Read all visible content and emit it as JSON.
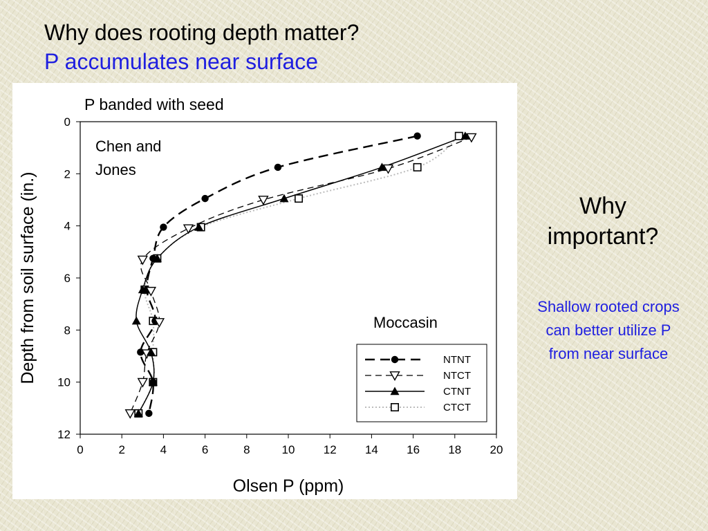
{
  "slide": {
    "title_line1": "Why does rooting depth matter?",
    "title_line2": "P accumulates near surface",
    "side_question": "Why important?",
    "side_answer": "Shallow rooted crops can better utilize P from near surface",
    "colors": {
      "title_accent": "#1f1fe0",
      "panel": "#ffffff"
    }
  },
  "chart_data": {
    "type": "line",
    "title": "P banded with seed",
    "xlabel": "Olsen P (ppm)",
    "ylabel": "Depth from soil surface (in.)",
    "xlim": [
      0,
      20
    ],
    "ylim": [
      0,
      12
    ],
    "y_inverted": true,
    "xticks": [
      0,
      2,
      4,
      6,
      8,
      10,
      12,
      14,
      16,
      18,
      20
    ],
    "yticks": [
      0,
      2,
      4,
      6,
      8,
      10,
      12
    ],
    "grid": false,
    "legend_position": "bottom-right",
    "annotations": [
      "Chen and",
      "Jones",
      "Moccasin"
    ],
    "series": [
      {
        "name": "NTNT",
        "marker": "filled-circle",
        "line": "long-dash",
        "points": [
          [
            16.2,
            0.55
          ],
          [
            9.5,
            1.75
          ],
          [
            6.0,
            2.95
          ],
          [
            4.0,
            4.05
          ],
          [
            3.5,
            5.25
          ],
          [
            3.2,
            6.45
          ],
          [
            3.6,
            7.65
          ],
          [
            2.9,
            8.85
          ],
          [
            3.5,
            10.0
          ],
          [
            3.3,
            11.2
          ]
        ]
      },
      {
        "name": "NTCT",
        "marker": "open-triangle-down",
        "line": "dash",
        "points": [
          [
            18.8,
            0.6
          ],
          [
            14.8,
            1.8
          ],
          [
            8.8,
            3.0
          ],
          [
            5.2,
            4.1
          ],
          [
            3.0,
            5.3
          ],
          [
            3.4,
            6.5
          ],
          [
            3.8,
            7.7
          ],
          [
            3.2,
            8.9
          ],
          [
            3.0,
            10.0
          ],
          [
            2.4,
            11.2
          ]
        ]
      },
      {
        "name": "CTNT",
        "marker": "filled-triangle-up",
        "line": "solid",
        "points": [
          [
            18.5,
            0.55
          ],
          [
            14.5,
            1.75
          ],
          [
            9.8,
            2.95
          ],
          [
            5.7,
            4.05
          ],
          [
            3.7,
            5.25
          ],
          [
            3.0,
            6.45
          ],
          [
            2.7,
            7.65
          ],
          [
            3.4,
            8.85
          ],
          [
            3.5,
            10.0
          ],
          [
            2.8,
            11.2
          ]
        ]
      },
      {
        "name": "CTCT",
        "marker": "open-square",
        "line": "dotted",
        "points": [
          [
            18.2,
            0.55
          ],
          [
            16.2,
            1.75
          ],
          [
            10.5,
            2.95
          ],
          [
            5.8,
            4.05
          ],
          [
            3.7,
            5.25
          ],
          [
            3.1,
            6.45
          ],
          [
            3.5,
            7.65
          ],
          [
            3.5,
            8.85
          ],
          [
            3.5,
            10.0
          ],
          [
            2.8,
            11.2
          ]
        ]
      }
    ]
  }
}
